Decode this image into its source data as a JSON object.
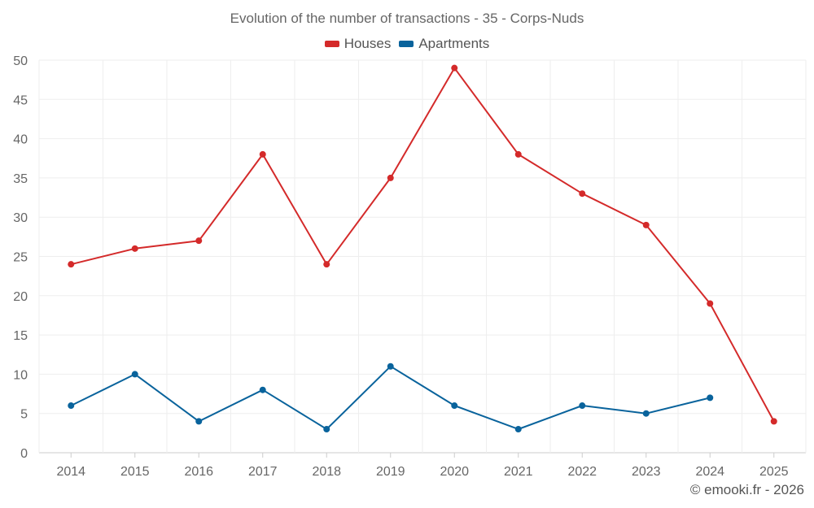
{
  "chart_data": {
    "type": "line",
    "title": "Evolution of the number of transactions - 35 - Corps-Nuds",
    "xlabel": "",
    "ylabel": "",
    "categories": [
      "2014",
      "2015",
      "2016",
      "2017",
      "2018",
      "2019",
      "2020",
      "2021",
      "2022",
      "2023",
      "2024",
      "2025"
    ],
    "ylim": [
      0,
      50
    ],
    "yticks": [
      0,
      5,
      10,
      15,
      20,
      25,
      30,
      35,
      40,
      45,
      50
    ],
    "grid": true,
    "legend_position": "top-center",
    "series": [
      {
        "name": "Houses",
        "color": "#d42a2a",
        "values": [
          24,
          26,
          27,
          38,
          24,
          35,
          49,
          38,
          33,
          29,
          19,
          4
        ]
      },
      {
        "name": "Apartments",
        "color": "#09639c",
        "values": [
          6,
          10,
          4,
          8,
          3,
          11,
          6,
          3,
          6,
          5,
          7,
          null
        ]
      }
    ]
  },
  "footer": {
    "credit": "© emooki.fr - 2026"
  }
}
